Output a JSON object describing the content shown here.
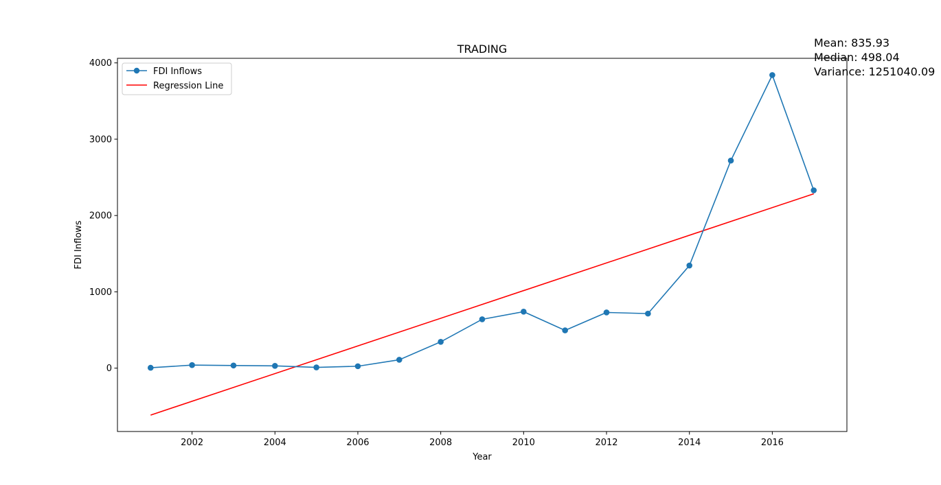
{
  "chart_data": {
    "type": "line",
    "title": "TRADING",
    "xlabel": "Year",
    "ylabel": "FDI Inflows",
    "xlim": [
      2000.2,
      2017.8
    ],
    "ylim": [
      -830,
      4060
    ],
    "x_ticks": [
      2002,
      2004,
      2006,
      2008,
      2010,
      2012,
      2014,
      2016
    ],
    "x_tick_labels": [
      "2002",
      "2004",
      "2006",
      "2008",
      "2010",
      "2012",
      "2014",
      "2016"
    ],
    "y_ticks": [
      0,
      1000,
      2000,
      3000,
      4000
    ],
    "y_tick_labels": [
      "0",
      "1000",
      "2000",
      "3000",
      "4000"
    ],
    "grid": false,
    "legend_position": "upper-left",
    "series": [
      {
        "name": "FDI Inflows",
        "kind": "line-with-markers",
        "color": "#1f77b4",
        "x": [
          2001,
          2002,
          2003,
          2004,
          2005,
          2006,
          2007,
          2008,
          2009,
          2010,
          2011,
          2012,
          2013,
          2014,
          2015,
          2016,
          2017
        ],
        "y": [
          5,
          40,
          35,
          30,
          10,
          25,
          110,
          345,
          640,
          740,
          495,
          730,
          715,
          1345,
          2720,
          3840,
          2330
        ]
      },
      {
        "name": "Regression Line",
        "kind": "line",
        "color": "#ff0000",
        "x": [
          2001,
          2017
        ],
        "y": [
          -615,
          2285
        ]
      }
    ],
    "annotations": [
      "Mean: 835.93",
      "Median: 498.04",
      "Variance: 1251040.09"
    ]
  }
}
